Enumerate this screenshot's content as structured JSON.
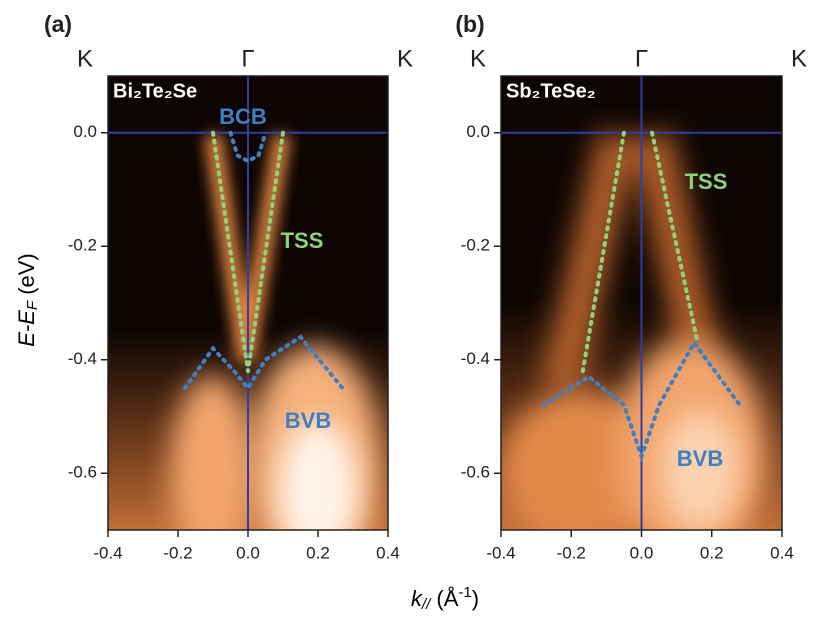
{
  "figure": {
    "ylabel": {
      "text": "E-E",
      "sub": "F",
      "tail": " (eV)"
    },
    "xlabel": {
      "text": "k",
      "sub": "//",
      "mid": " (Å",
      "sup": "-1",
      "tail": ")"
    }
  },
  "chart_data": [
    {
      "type": "line",
      "panel_label": "(a)",
      "sample": "Bi₂Te₂Se",
      "top_labels": [
        "K",
        "Γ",
        "K"
      ],
      "xlim": [
        -0.4,
        0.4
      ],
      "ylim": [
        -0.7,
        0.1
      ],
      "xticks": [
        -0.4,
        -0.2,
        {
          "value": 0,
          "label": "0.0"
        },
        0.2,
        0.4
      ],
      "yticks": [
        {
          "value": 0,
          "label": "0.0"
        },
        -0.2,
        -0.4,
        -0.6
      ],
      "series": [
        {
          "color": "#3f7fc4",
          "x": [
            -0.05,
            -0.03,
            0,
            0.03,
            0.05
          ],
          "values": [
            0,
            -0.04,
            -0.05,
            -0.04,
            0
          ]
        },
        {
          "color": "#8fd27a",
          "x": [
            -0.1,
            0
          ],
          "values": [
            0,
            -0.42
          ]
        },
        {
          "color": "#8fd27a",
          "x": [
            0.1,
            0
          ],
          "values": [
            0,
            -0.42
          ]
        },
        {
          "color": "#3f7fc4",
          "x": [
            -0.18,
            -0.1,
            -0.04,
            0,
            0.05,
            0.15,
            0.27
          ],
          "values": [
            -0.45,
            -0.38,
            -0.42,
            -0.45,
            -0.4,
            -0.36,
            -0.45
          ]
        }
      ],
      "annotations": [
        {
          "text": "BCB",
          "color": "#3f7fc4"
        },
        {
          "text": "TSS",
          "color": "#8fd27a"
        },
        {
          "text": "BVB",
          "color": "#3f7fc4"
        }
      ]
    },
    {
      "type": "line",
      "panel_label": "(b)",
      "sample": "Sb₂TeSe₂",
      "top_labels": [
        "K",
        "Γ",
        "K"
      ],
      "xlim": [
        -0.4,
        0.4
      ],
      "ylim": [
        -0.7,
        0.1
      ],
      "xticks": [
        -0.4,
        -0.2,
        {
          "value": 0,
          "label": "0.0"
        },
        0.2,
        0.4
      ],
      "yticks": [
        {
          "value": 0,
          "label": "0.0"
        },
        -0.2,
        -0.4,
        -0.6
      ],
      "series": [
        {
          "color": "#8fd27a",
          "x": [
            -0.05,
            -0.17
          ],
          "values": [
            0,
            -0.43
          ]
        },
        {
          "color": "#8fd27a",
          "x": [
            0.03,
            0.16
          ],
          "values": [
            0,
            -0.37
          ]
        },
        {
          "color": "#3f7fc4",
          "x": [
            -0.28,
            -0.15,
            -0.05,
            0,
            0.05,
            0.15,
            0.28
          ],
          "values": [
            -0.48,
            -0.43,
            -0.48,
            -0.57,
            -0.48,
            -0.37,
            -0.48
          ]
        }
      ],
      "annotations": [
        {
          "text": "TSS",
          "color": "#8fd27a"
        },
        {
          "text": "BVB",
          "color": "#3f7fc4"
        }
      ]
    }
  ]
}
